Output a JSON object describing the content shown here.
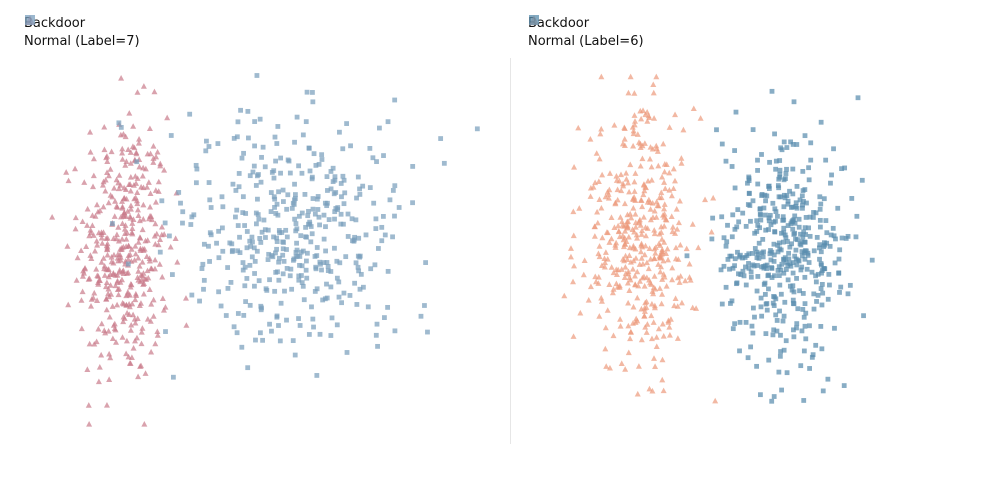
{
  "chart_data": [
    {
      "type": "scatter",
      "legend_position": "top-left",
      "axes_visible": false,
      "grid": false,
      "series": [
        {
          "name": "Backdoor",
          "marker": "triangle",
          "color": "#c97b8a",
          "cluster": {
            "center": [
              -2.0,
              0.0
            ],
            "spread": [
              0.55,
              2.0
            ],
            "count": 420
          }
        },
        {
          "name": "Normal (Label=7)",
          "marker": "square",
          "color": "#7a9fbd",
          "cluster": {
            "center": [
              2.2,
              0.6
            ],
            "spread": [
              1.4,
              1.75
            ],
            "count": 430
          }
        }
      ]
    },
    {
      "type": "scatter",
      "legend_position": "top-left",
      "axes_visible": false,
      "grid": false,
      "series": [
        {
          "name": "Backdoor",
          "marker": "triangle",
          "color": "#ec9a7c",
          "cluster": {
            "center": [
              -1.6,
              0.3
            ],
            "spread": [
              0.7,
              1.85
            ],
            "count": 430
          }
        },
        {
          "name": "Normal (Label=6)",
          "marker": "square",
          "color": "#5a8eae",
          "cluster": {
            "center": [
              2.0,
              0.0
            ],
            "spread": [
              0.75,
              1.8
            ],
            "count": 440
          }
        }
      ]
    }
  ]
}
